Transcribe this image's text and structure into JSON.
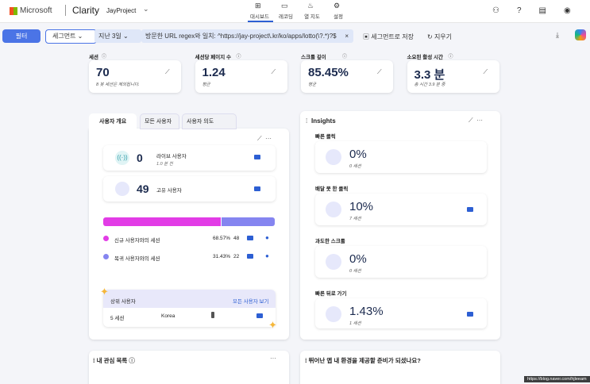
{
  "header": {
    "brand": "Microsoft",
    "product": "Clarity",
    "project": "JayProject",
    "nav": [
      "대시보드",
      "레코딩",
      "열 지도",
      "설정"
    ]
  },
  "toolbar": {
    "filter": "필터",
    "segment": "세그먼트",
    "date_range": "지난 3일",
    "url_filter": "방문한 URL regex와 일치: ^https://jay-project\\.kr/ko/apps/lotto(\\?.*)?$",
    "save_segment": "세그먼트로 저장",
    "clear": "지우기"
  },
  "metrics": [
    {
      "label": "세션",
      "value": "70",
      "note": "8 봇 세션은 제외됩니다."
    },
    {
      "label": "세션당 페이지 수",
      "value": "1.24",
      "note": "평균"
    },
    {
      "label": "스크롤 깊이",
      "value": "85.45%",
      "note": "평균"
    },
    {
      "label": "소요된 활성 시간",
      "value": "3.3 분",
      "note": "총 시간 3.9 분 중"
    }
  ],
  "user_overview": {
    "tabs": [
      "사용자 개요",
      "모든 사용자",
      "사용자 의도"
    ],
    "live_users": {
      "count": "0",
      "label": "라이브 사용자",
      "note": "1.0 분 전"
    },
    "unique_users": {
      "count": "49",
      "label": "고유 사용자"
    },
    "sessions": [
      {
        "label": "신규 사용자와의 세션",
        "share": {
          "value": 68.57,
          "label": "68.57%"
        },
        "count": "48",
        "color": "#e23ce6"
      },
      {
        "label": "복귀 사용자와의 세션",
        "share": {
          "value": 31.43,
          "label": "31.43%"
        },
        "count": "22",
        "color": "#8585f0"
      }
    ],
    "top_users": {
      "title": "상위 사용자",
      "link": "모든 사용자 보기",
      "rows": [
        [
          "5 세션",
          "Korea"
        ]
      ]
    }
  },
  "insights": {
    "title": "Insights",
    "items": [
      {
        "label": "빠른 클릭",
        "value": "0%",
        "sessions": "0 세션"
      },
      {
        "label": "배달 못 한 클릭",
        "value": "10%",
        "sessions": "7 세션"
      },
      {
        "label": "과도한 스크롤",
        "value": "0%",
        "sessions": "0 세션"
      },
      {
        "label": "빠른 뒤로 가기",
        "value": "1.43%",
        "sessions": "1 세션"
      }
    ]
  },
  "watchlist": {
    "title": "내 관심 목록"
  },
  "app_panel": {
    "title": "뛰어난 앱 내 환경을 제공할 준비가 되셨나요?"
  },
  "watermark": "https://blog.naver.com/hjleeam"
}
